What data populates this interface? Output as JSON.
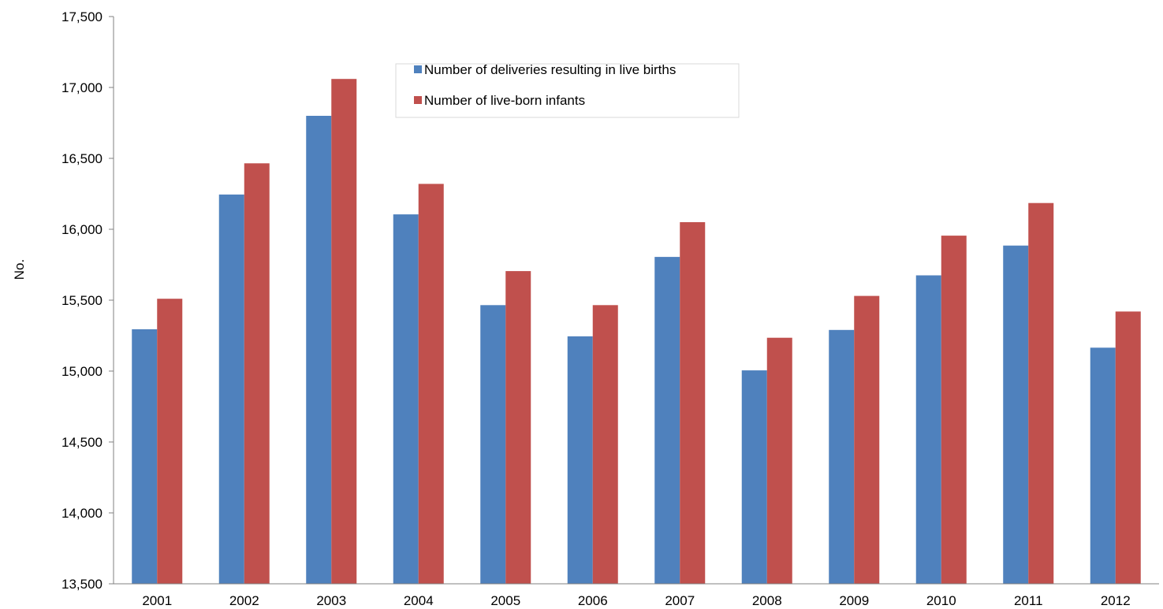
{
  "chart_data": {
    "type": "bar",
    "title": "",
    "xlabel": "",
    "ylabel": "No.",
    "ylim": [
      13500,
      17500
    ],
    "ytick_step": 500,
    "grid": false,
    "legend_position": "top-center",
    "categories": [
      "2001",
      "2002",
      "2003",
      "2004",
      "2005",
      "2006",
      "2007",
      "2008",
      "2009",
      "2010",
      "2011",
      "2012"
    ],
    "series": [
      {
        "name": "Number of deliveries resulting in live births",
        "color": "#4f81bd",
        "values": [
          15295,
          16245,
          16800,
          16105,
          15465,
          15245,
          15805,
          15005,
          15290,
          15675,
          15885,
          15165
        ]
      },
      {
        "name": "Number of live-born infants",
        "color": "#c0504d",
        "values": [
          15510,
          16465,
          17060,
          16320,
          15705,
          15465,
          16050,
          15235,
          15530,
          15955,
          16185,
          15420
        ]
      }
    ]
  }
}
